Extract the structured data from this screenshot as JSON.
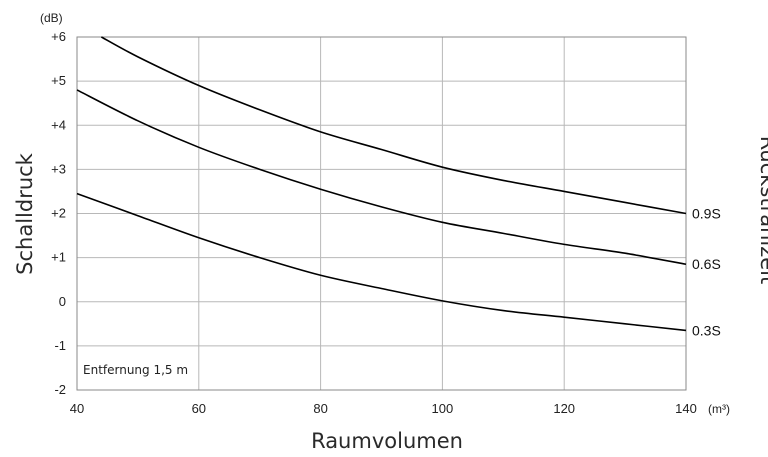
{
  "chart_data": {
    "type": "line",
    "xlabel": "Raumvolumen",
    "ylabel": "Schalldruck",
    "right_label": "Rückstrahlzeit",
    "x_unit": "(m³)",
    "y_unit": "(dB)",
    "annotation": "Entfernung 1,5 m",
    "xlim": [
      40,
      140
    ],
    "ylim": [
      -2,
      6
    ],
    "x_ticks": [
      "40",
      "60",
      "80",
      "100",
      "120",
      "140"
    ],
    "y_ticks": [
      "+6",
      "+5",
      "+4",
      "+3",
      "+2",
      "+1",
      "0",
      "-1",
      "-2"
    ],
    "y_tick_values": [
      6,
      5,
      4,
      3,
      2,
      1,
      0,
      -1,
      -2
    ],
    "x_tick_values": [
      40,
      60,
      80,
      100,
      120,
      140
    ],
    "grid": true,
    "series": [
      {
        "name": "0.9S",
        "x": [
          44,
          50,
          60,
          70,
          80,
          90,
          100,
          110,
          120,
          130,
          140
        ],
        "y": [
          6.0,
          5.55,
          4.9,
          4.35,
          3.85,
          3.45,
          3.05,
          2.75,
          2.5,
          2.25,
          2.0
        ]
      },
      {
        "name": "0.6S",
        "x": [
          40,
          50,
          60,
          70,
          80,
          90,
          100,
          110,
          120,
          130,
          140
        ],
        "y": [
          4.8,
          4.1,
          3.5,
          3.0,
          2.55,
          2.15,
          1.8,
          1.55,
          1.3,
          1.1,
          0.85
        ]
      },
      {
        "name": "0.3S",
        "x": [
          40,
          50,
          60,
          70,
          80,
          90,
          100,
          110,
          120,
          130,
          140
        ],
        "y": [
          2.45,
          1.95,
          1.45,
          1.0,
          0.6,
          0.3,
          0.02,
          -0.2,
          -0.35,
          -0.5,
          -0.65
        ]
      }
    ]
  }
}
